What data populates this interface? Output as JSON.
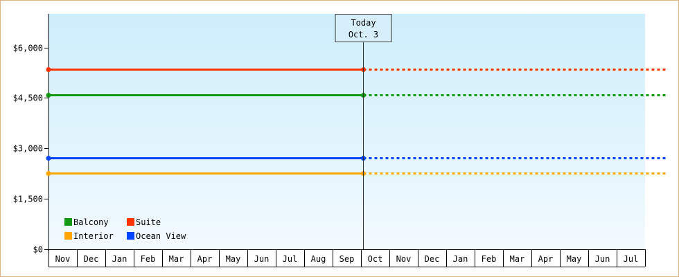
{
  "chart_data": {
    "type": "line",
    "title": "",
    "xlabel": "",
    "ylabel": "",
    "y_ticks": [
      {
        "value": 0,
        "label": "$0"
      },
      {
        "value": 1500,
        "label": "$1,500"
      },
      {
        "value": 3000,
        "label": "$3,000"
      },
      {
        "value": 4500,
        "label": "$4,500"
      },
      {
        "value": 6000,
        "label": "$6,000"
      }
    ],
    "ylim": [
      0,
      7000
    ],
    "x_months": [
      "Nov",
      "Dec",
      "Jan",
      "Feb",
      "Mar",
      "Apr",
      "May",
      "Jun",
      "Jul",
      "Aug",
      "Sep",
      "Oct",
      "Nov",
      "Dec",
      "Jan",
      "Feb",
      "Mar",
      "Apr",
      "May",
      "Jun",
      "Jul"
    ],
    "today": {
      "line1": "Today",
      "line2": "Oct. 3"
    },
    "series": [
      {
        "name": "Suite",
        "color": "#ff3300",
        "value": 5350
      },
      {
        "name": "Balcony",
        "color": "#119911",
        "value": 4600
      },
      {
        "name": "Ocean View",
        "color": "#0044ff",
        "value": 2720
      },
      {
        "name": "Interior",
        "color": "#ffa500",
        "value": 2260
      }
    ],
    "legend": {
      "placement": "bottom-left",
      "items": [
        {
          "name": "Balcony",
          "color": "#119911"
        },
        {
          "name": "Suite",
          "color": "#ff3300"
        },
        {
          "name": "Interior",
          "color": "#ffa500"
        },
        {
          "name": "Ocean View",
          "color": "#0044ff"
        }
      ]
    },
    "colors": {
      "plot_top": "#cdeefc",
      "plot_bottom": "#f2fafe",
      "frame_border": "#e8b27a"
    }
  }
}
